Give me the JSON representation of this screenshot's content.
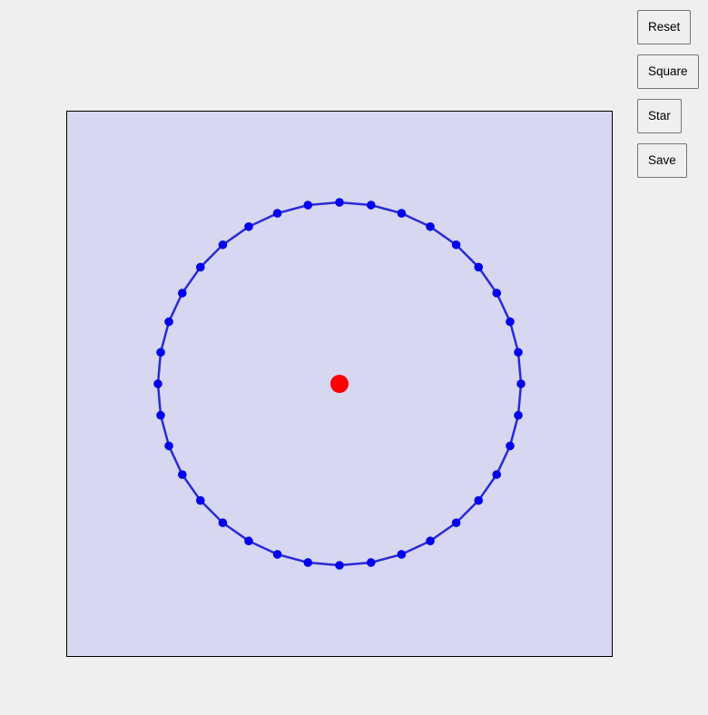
{
  "toolbar": {
    "buttons": [
      {
        "name": "reset-button",
        "label": "Reset"
      },
      {
        "name": "square-button",
        "label": "Square"
      },
      {
        "name": "star-button",
        "label": "Star"
      },
      {
        "name": "save-button",
        "label": "Save"
      }
    ]
  },
  "editor": {
    "background_color": "#d7d7f2",
    "outline_color": "#2a2ad9",
    "control_point_color": "#0000ee",
    "center_point_color": "#ff0000",
    "shape": "circle",
    "control_point_count": 36
  }
}
